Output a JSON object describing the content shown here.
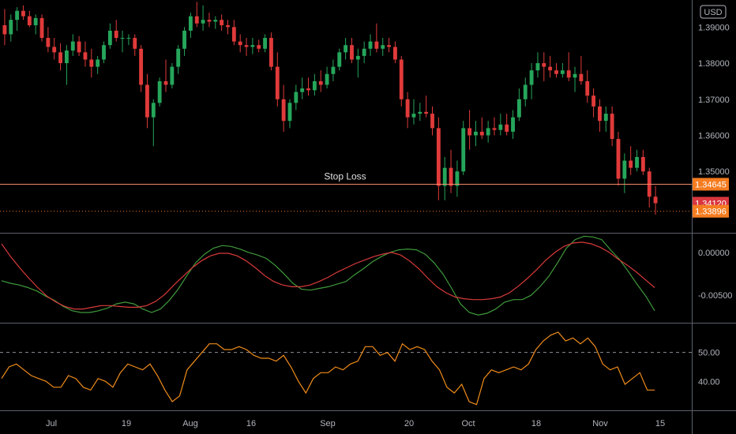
{
  "currency_badge": "USD",
  "price_axis_ticks": [
    "1.39000",
    "1.38000",
    "1.37000",
    "1.36000",
    "1.35000"
  ],
  "macd_axis_ticks": [
    "0.00000",
    "-0.00500"
  ],
  "rsi_axis_ticks": [
    "50.00",
    "40.00"
  ],
  "time_axis_ticks": [
    "Jul",
    "19",
    "Aug",
    "16",
    "Sep",
    "20",
    "Oct",
    "18",
    "Nov",
    "15"
  ],
  "annotation": "Stop Loss",
  "price_tags": {
    "stop_loss": "1.34645",
    "last_close": "1.34120",
    "dotted": "1.33896"
  },
  "colors": {
    "up": "#26a65b",
    "down": "#e03a3a",
    "stop_line": "#f48a6b",
    "stop_tag": "#f57c20",
    "last_tag": "#d9363e",
    "dotted_tag": "#f57c20",
    "macd_fast": "#3f9a3c",
    "macd_signal": "#d93a3a",
    "rsi": "#f08c1a"
  },
  "chart_data": [
    {
      "type": "candlestick",
      "title": "",
      "ylim": [
        1.333,
        1.3975
      ],
      "y_ticks": [
        1.39,
        1.38,
        1.37,
        1.36,
        1.35
      ],
      "stop_loss": 1.34645,
      "last_close": 1.3412,
      "dotted_level": 1.33896,
      "ohlc": [
        [
          1.3905,
          1.395,
          1.385,
          1.388
        ],
        [
          1.388,
          1.3935,
          1.386,
          1.392
        ],
        [
          1.392,
          1.3955,
          1.389,
          1.3945
        ],
        [
          1.3945,
          1.396,
          1.392,
          1.393
        ],
        [
          1.393,
          1.3945,
          1.39,
          1.3905
        ],
        [
          1.3905,
          1.3935,
          1.388,
          1.3925
        ],
        [
          1.3925,
          1.3935,
          1.386,
          1.387
        ],
        [
          1.387,
          1.39,
          1.383,
          1.3845
        ],
        [
          1.3845,
          1.387,
          1.381,
          1.383
        ],
        [
          1.383,
          1.3855,
          1.378,
          1.38
        ],
        [
          1.38,
          1.385,
          1.374,
          1.3835
        ],
        [
          1.3835,
          1.388,
          1.382,
          1.386
        ],
        [
          1.386,
          1.3875,
          1.382,
          1.383
        ],
        [
          1.383,
          1.386,
          1.379,
          1.381
        ],
        [
          1.381,
          1.384,
          1.376,
          1.379
        ],
        [
          1.379,
          1.382,
          1.377,
          1.381
        ],
        [
          1.381,
          1.386,
          1.38,
          1.385
        ],
        [
          1.385,
          1.391,
          1.384,
          1.389
        ],
        [
          1.389,
          1.392,
          1.386,
          1.387
        ],
        [
          1.387,
          1.389,
          1.383,
          1.387
        ],
        [
          1.387,
          1.388,
          1.385,
          1.387
        ],
        [
          1.387,
          1.388,
          1.382,
          1.384
        ],
        [
          1.384,
          1.385,
          1.372,
          1.374
        ],
        [
          1.374,
          1.377,
          1.362,
          1.365
        ],
        [
          1.365,
          1.37,
          1.357,
          1.369
        ],
        [
          1.369,
          1.376,
          1.368,
          1.375
        ],
        [
          1.375,
          1.381,
          1.372,
          1.374
        ],
        [
          1.374,
          1.38,
          1.373,
          1.379
        ],
        [
          1.379,
          1.385,
          1.377,
          1.384
        ],
        [
          1.384,
          1.39,
          1.382,
          1.389
        ],
        [
          1.389,
          1.394,
          1.387,
          1.393
        ],
        [
          1.393,
          1.397,
          1.39,
          1.391
        ],
        [
          1.391,
          1.396,
          1.389,
          1.392
        ],
        [
          1.392,
          1.394,
          1.39,
          1.3915
        ],
        [
          1.3915,
          1.393,
          1.3895,
          1.392
        ],
        [
          1.392,
          1.3935,
          1.389,
          1.3905
        ],
        [
          1.3905,
          1.392,
          1.388,
          1.39
        ],
        [
          1.39,
          1.392,
          1.385,
          1.386
        ],
        [
          1.386,
          1.388,
          1.383,
          1.385
        ],
        [
          1.385,
          1.387,
          1.382,
          1.3845
        ],
        [
          1.3845,
          1.387,
          1.3825,
          1.385
        ],
        [
          1.385,
          1.3865,
          1.383,
          1.384
        ],
        [
          1.384,
          1.388,
          1.383,
          1.387
        ],
        [
          1.387,
          1.3885,
          1.378,
          1.379
        ],
        [
          1.379,
          1.383,
          1.368,
          1.37
        ],
        [
          1.37,
          1.374,
          1.361,
          1.364
        ],
        [
          1.364,
          1.37,
          1.362,
          1.369
        ],
        [
          1.369,
          1.374,
          1.367,
          1.372
        ],
        [
          1.372,
          1.376,
          1.37,
          1.373
        ],
        [
          1.373,
          1.376,
          1.371,
          1.3725
        ],
        [
          1.3725,
          1.377,
          1.371,
          1.375
        ],
        [
          1.375,
          1.378,
          1.372,
          1.374
        ],
        [
          1.374,
          1.379,
          1.373,
          1.377
        ],
        [
          1.377,
          1.381,
          1.375,
          1.379
        ],
        [
          1.379,
          1.384,
          1.378,
          1.383
        ],
        [
          1.383,
          1.387,
          1.381,
          1.385
        ],
        [
          1.385,
          1.387,
          1.38,
          1.381
        ],
        [
          1.381,
          1.384,
          1.376,
          1.382
        ],
        [
          1.382,
          1.386,
          1.38,
          1.384
        ],
        [
          1.384,
          1.388,
          1.382,
          1.386
        ],
        [
          1.386,
          1.391,
          1.383,
          1.384
        ],
        [
          1.384,
          1.387,
          1.382,
          1.385
        ],
        [
          1.385,
          1.387,
          1.383,
          1.3845
        ],
        [
          1.3845,
          1.386,
          1.38,
          1.381
        ],
        [
          1.381,
          1.382,
          1.368,
          1.37
        ],
        [
          1.37,
          1.372,
          1.362,
          1.365
        ],
        [
          1.365,
          1.37,
          1.363,
          1.366
        ],
        [
          1.366,
          1.369,
          1.364,
          1.3665
        ],
        [
          1.3665,
          1.371,
          1.365,
          1.366
        ],
        [
          1.366,
          1.368,
          1.36,
          1.362
        ],
        [
          1.362,
          1.365,
          1.342,
          1.346
        ],
        [
          1.346,
          1.354,
          1.342,
          1.351
        ],
        [
          1.351,
          1.356,
          1.344,
          1.346
        ],
        [
          1.346,
          1.353,
          1.343,
          1.35
        ],
        [
          1.35,
          1.364,
          1.349,
          1.362
        ],
        [
          1.362,
          1.367,
          1.356,
          1.36
        ],
        [
          1.36,
          1.364,
          1.357,
          1.361
        ],
        [
          1.361,
          1.365,
          1.359,
          1.36
        ],
        [
          1.36,
          1.364,
          1.358,
          1.362
        ],
        [
          1.362,
          1.365,
          1.36,
          1.3615
        ],
        [
          1.3615,
          1.366,
          1.36,
          1.363
        ],
        [
          1.363,
          1.366,
          1.36,
          1.361
        ],
        [
          1.361,
          1.367,
          1.359,
          1.365
        ],
        [
          1.365,
          1.373,
          1.364,
          1.37
        ],
        [
          1.37,
          1.376,
          1.368,
          1.374
        ],
        [
          1.374,
          1.38,
          1.37,
          1.378
        ],
        [
          1.378,
          1.383,
          1.376,
          1.38
        ],
        [
          1.38,
          1.383,
          1.375,
          1.379
        ],
        [
          1.379,
          1.382,
          1.376,
          1.378
        ],
        [
          1.378,
          1.38,
          1.376,
          1.377
        ],
        [
          1.377,
          1.38,
          1.376,
          1.378
        ],
        [
          1.378,
          1.383,
          1.375,
          1.376
        ],
        [
          1.376,
          1.379,
          1.372,
          1.377
        ],
        [
          1.377,
          1.382,
          1.374,
          1.375
        ],
        [
          1.375,
          1.378,
          1.369,
          1.371
        ],
        [
          1.371,
          1.373,
          1.365,
          1.368
        ],
        [
          1.368,
          1.37,
          1.361,
          1.364
        ],
        [
          1.364,
          1.368,
          1.361,
          1.366
        ],
        [
          1.366,
          1.368,
          1.357,
          1.359
        ],
        [
          1.359,
          1.361,
          1.346,
          1.348
        ],
        [
          1.348,
          1.355,
          1.344,
          1.353
        ],
        [
          1.353,
          1.357,
          1.349,
          1.351
        ],
        [
          1.351,
          1.356,
          1.35,
          1.354
        ],
        [
          1.354,
          1.356,
          1.349,
          1.35
        ],
        [
          1.35,
          1.351,
          1.34,
          1.343
        ],
        [
          1.343,
          1.346,
          1.338,
          1.3412
        ]
      ]
    },
    {
      "type": "line",
      "title": "",
      "ylim": [
        -0.0082,
        0.0022
      ],
      "y_ticks": [
        0.0,
        -0.005
      ],
      "series": [
        {
          "values": [
            -0.0033,
            -0.0036,
            -0.0038,
            -0.0041,
            -0.0045,
            -0.0051,
            -0.0056,
            -0.0063,
            -0.0068,
            -0.007,
            -0.007,
            -0.0068,
            -0.0065,
            -0.006,
            -0.0058,
            -0.006,
            -0.0066,
            -0.007,
            -0.0066,
            -0.0056,
            -0.0043,
            -0.0027,
            -0.0012,
            -0.0002,
            0.0005,
            0.0008,
            0.0007,
            0.0004,
            0.0,
            -0.0003,
            -0.0007,
            -0.0015,
            -0.0025,
            -0.0036,
            -0.0043,
            -0.0044,
            -0.0042,
            -0.004,
            -0.0037,
            -0.0034,
            -0.0026,
            -0.0019,
            -0.0011,
            -0.0005,
            0.0,
            0.0003,
            0.0004,
            0.0003,
            -0.0002,
            -0.0012,
            -0.0025,
            -0.0042,
            -0.006,
            -0.007,
            -0.0073,
            -0.0071,
            -0.0066,
            -0.0058,
            -0.0055,
            -0.0055,
            -0.005,
            -0.004,
            -0.0028,
            -0.0012,
            0.0005,
            0.0015,
            0.0019,
            0.0018,
            0.0015,
            0.0003,
            -0.0008,
            -0.0022,
            -0.0037,
            -0.0051,
            -0.0068
          ]
        },
        {
          "values": [
            0.001,
            -0.0005,
            -0.0018,
            -0.003,
            -0.0041,
            -0.0051,
            -0.0058,
            -0.0063,
            -0.0066,
            -0.0066,
            -0.0064,
            -0.0062,
            -0.0062,
            -0.0063,
            -0.0064,
            -0.0064,
            -0.0062,
            -0.0057,
            -0.0049,
            -0.0038,
            -0.0028,
            -0.0018,
            -0.001,
            -0.0004,
            -0.0001,
            -0.0001,
            -0.0004,
            -0.001,
            -0.0018,
            -0.0027,
            -0.0034,
            -0.0038,
            -0.004,
            -0.004,
            -0.0038,
            -0.0034,
            -0.0029,
            -0.0023,
            -0.0018,
            -0.0013,
            -0.0009,
            -0.0005,
            -0.0002,
            0.0,
            -0.0003,
            -0.001,
            -0.0019,
            -0.003,
            -0.004,
            -0.0047,
            -0.0052,
            -0.0054,
            -0.0055,
            -0.0055,
            -0.0054,
            -0.0052,
            -0.0047,
            -0.0039,
            -0.003,
            -0.002,
            -0.0009,
            0.0,
            0.0007,
            0.0011,
            0.0012,
            0.001,
            0.0006,
            0.0,
            -0.0008,
            -0.0015,
            -0.0023,
            -0.0032,
            -0.0041
          ]
        }
      ]
    },
    {
      "type": "line",
      "title": "",
      "ylim": [
        30,
        60
      ],
      "y_ticks": [
        50,
        40
      ],
      "reference_line": 50,
      "series": [
        {
          "values": [
            41,
            45,
            46,
            44,
            42,
            41,
            40,
            38,
            38,
            42,
            41,
            38,
            37,
            41,
            40,
            38,
            43,
            46,
            45,
            44,
            46,
            42,
            37,
            33,
            35,
            44,
            47,
            50,
            53,
            53,
            51,
            51,
            52,
            51,
            49,
            48,
            48,
            47,
            49,
            45,
            40,
            36,
            41,
            43,
            43,
            45,
            44,
            46,
            47,
            52,
            52,
            49,
            50,
            47,
            53,
            51,
            52,
            51,
            47,
            44,
            38,
            36,
            39,
            33,
            32,
            41,
            44,
            43,
            44,
            45,
            44,
            46,
            51,
            54,
            56,
            57,
            54,
            55,
            53,
            55,
            52,
            46,
            44,
            45,
            39,
            41,
            43,
            37,
            37
          ]
        }
      ]
    }
  ]
}
